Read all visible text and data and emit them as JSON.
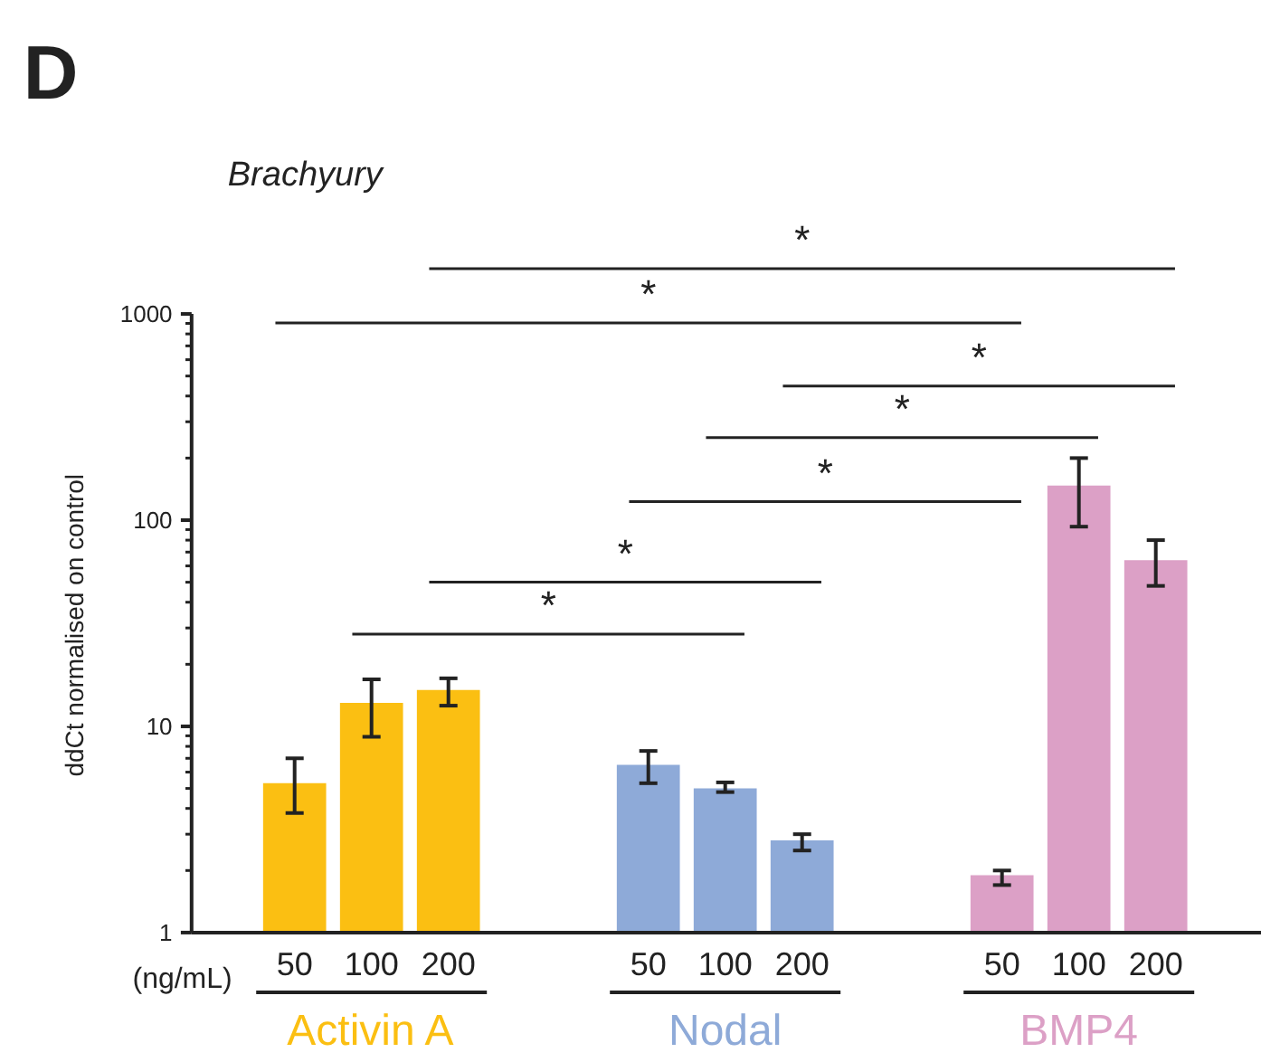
{
  "chart_data": {
    "type": "bar",
    "title": "Brachyury",
    "xlabel": "(ng/mL)",
    "ylabel": "ddCt normalised on control",
    "annotations": [
      "D",
      "*",
      "*",
      "*",
      "*",
      "*",
      "*",
      "*"
    ],
    "categories": [
      "50",
      "100",
      "200",
      "50",
      "100",
      "200",
      "50",
      "100",
      "200"
    ],
    "series": [
      {
        "name": "Activin A",
        "color": "#fbbf12",
        "values": [
          5.3,
          13.0,
          15.0,
          null,
          null,
          null,
          null,
          null,
          null
        ],
        "errors": [
          [
            3.8,
            7.0
          ],
          [
            8.9,
            16.9
          ],
          [
            12.6,
            17.1
          ],
          null,
          null,
          null,
          null,
          null,
          null
        ]
      },
      {
        "name": "Nodal",
        "color": "#8eaad8",
        "values": [
          null,
          null,
          null,
          6.5,
          5.0,
          2.8,
          null,
          null,
          null
        ],
        "errors": [
          null,
          null,
          null,
          [
            5.3,
            7.6
          ],
          [
            4.8,
            5.35
          ],
          [
            2.5,
            3.0
          ],
          null,
          null,
          null
        ]
      },
      {
        "name": "BMP4",
        "color": "#dca0c6",
        "values": [
          null,
          null,
          null,
          null,
          null,
          null,
          1.9,
          147,
          64
        ],
        "errors": [
          null,
          null,
          null,
          null,
          null,
          null,
          [
            1.7,
            2.0
          ],
          [
            93,
            200
          ],
          [
            48,
            80
          ]
        ]
      }
    ],
    "log": "y",
    "ylim": [
      1,
      1000
    ],
    "yticks": [
      1,
      10,
      100,
      1000
    ],
    "grid": false
  }
}
